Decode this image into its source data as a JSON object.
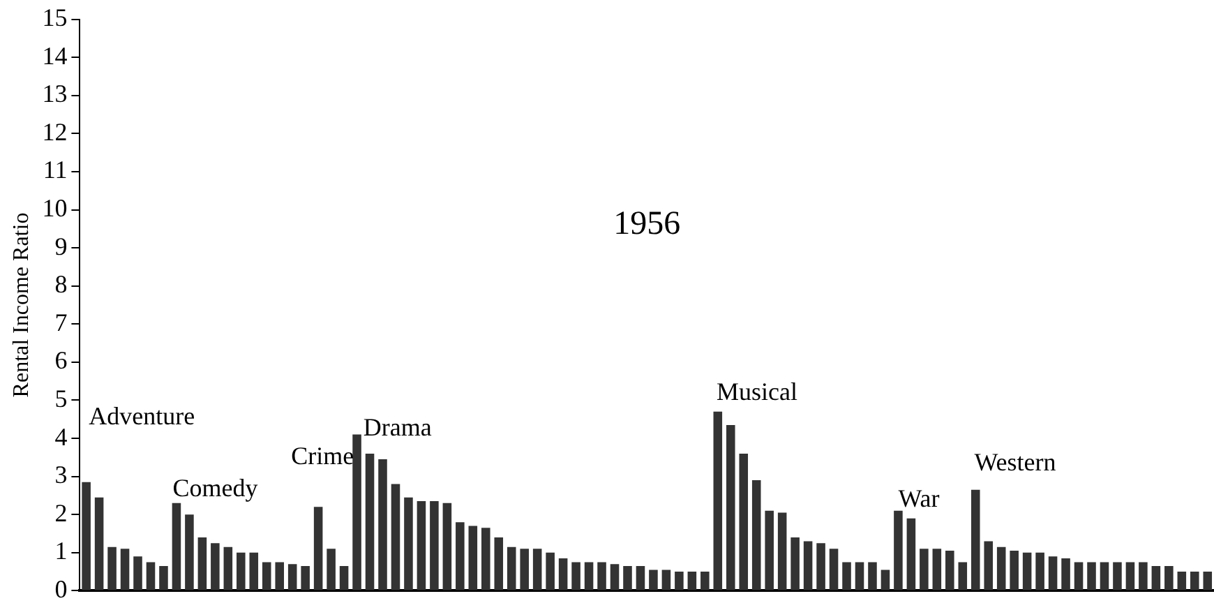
{
  "chart_data": {
    "type": "bar",
    "title": "1956",
    "ylabel": "Rental Income Ratio",
    "categories": [
      null,
      null,
      null,
      null,
      null,
      null,
      null,
      null,
      null,
      null,
      null,
      null,
      null,
      null,
      null,
      null,
      null,
      null,
      null,
      null,
      null,
      null,
      null,
      null,
      null,
      null,
      null,
      null,
      null,
      null,
      null,
      null,
      null,
      null,
      null,
      null,
      null,
      null,
      null,
      null,
      null,
      null,
      null,
      null,
      null,
      null,
      null,
      null,
      null,
      null,
      null,
      null,
      null,
      null,
      null,
      null,
      null,
      null,
      null,
      null,
      null,
      null,
      null,
      null,
      null,
      null,
      null,
      null,
      null,
      null,
      null,
      null,
      null,
      null,
      null,
      null,
      null,
      null,
      null,
      null,
      null,
      null,
      null,
      null,
      null,
      null,
      null,
      null
    ],
    "values": [
      2.85,
      2.45,
      1.15,
      1.1,
      0.9,
      0.75,
      0.65,
      2.3,
      2.0,
      1.4,
      1.25,
      1.15,
      1.0,
      1.0,
      0.75,
      0.75,
      0.7,
      0.65,
      2.2,
      1.1,
      0.65,
      4.1,
      3.6,
      3.45,
      2.8,
      2.45,
      2.35,
      2.35,
      2.3,
      1.8,
      1.7,
      1.65,
      1.4,
      1.15,
      1.1,
      1.1,
      1.0,
      0.85,
      0.75,
      0.75,
      0.75,
      0.7,
      0.65,
      0.65,
      0.55,
      0.55,
      0.5,
      0.5,
      0.5,
      4.7,
      4.35,
      3.6,
      2.9,
      2.1,
      2.05,
      1.4,
      1.3,
      1.25,
      1.1,
      0.75,
      0.75,
      0.75,
      0.55,
      2.1,
      1.9,
      1.1,
      1.1,
      1.05,
      0.75,
      2.65,
      1.3,
      1.15,
      1.05,
      1.0,
      1.0,
      0.9,
      0.85,
      0.75,
      0.75,
      0.75,
      0.75,
      0.75,
      0.75,
      0.65,
      0.65,
      0.5,
      0.5,
      0.5
    ],
    "color": "#333333",
    "ylim": [
      0,
      15
    ],
    "yticks": [
      0,
      1,
      2,
      3,
      4,
      5,
      6,
      7,
      8,
      9,
      10,
      11,
      12,
      13,
      14,
      15
    ],
    "grid": false,
    "legend": false,
    "tick_labels": "y",
    "annotations": [
      "Adventure",
      "Comedy",
      "Crime",
      "Drama",
      "Musical",
      "War",
      "Western"
    ]
  }
}
